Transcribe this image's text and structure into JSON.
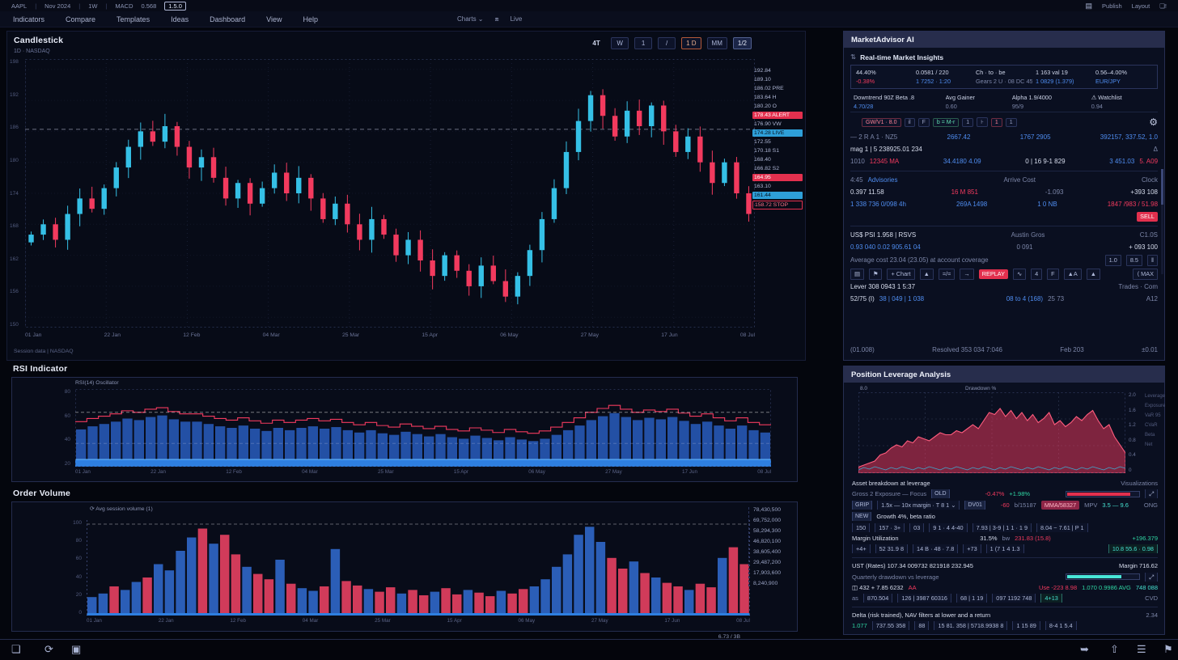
{
  "meta": {
    "accent_red": "#f23a5e",
    "accent_cyan": "#35c0e6",
    "accent_blue": "#4f8df0",
    "accent_teal": "#45e0cf",
    "chip_red": "#e3304e",
    "chip_blue": "#2e9fd8"
  },
  "topbar": {
    "left": [
      "AAPL",
      "Nov 2024",
      "1W",
      "MACD",
      "0.568"
    ],
    "version_chip": "1.5.0",
    "right": [
      "Publish",
      "Layout"
    ]
  },
  "menubar": {
    "items": [
      "Indicators",
      "Compare",
      "Templates",
      "Ideas",
      "Dashboard",
      "View",
      "Help"
    ],
    "center": [
      "Charts ⌄",
      "Live"
    ]
  },
  "price_panel": {
    "title": "Candlestick",
    "subtitle": "1D · NASDAQ",
    "toolbar": [
      {
        "t": "4T",
        "s": "plain"
      },
      {
        "t": "W",
        "s": ""
      },
      {
        "t": "1",
        "s": ""
      },
      {
        "t": "/",
        "s": ""
      },
      {
        "t": "1 D",
        "s": "orange"
      },
      {
        "t": "MM",
        "s": ""
      },
      {
        "t": "1/2",
        "s": "bright"
      }
    ],
    "y_labels": [
      "198",
      "192",
      "186",
      "180",
      "174",
      "168",
      "162",
      "156",
      "150"
    ],
    "x_labels": [
      "01 Jan",
      "22 Jan",
      "12 Feb",
      "04 Mar",
      "25 Mar",
      "15 Apr",
      "06 May",
      "27 May",
      "17 Jun",
      "08 Jul"
    ],
    "footer": "Session data  |  NASDAQ",
    "level_price": 186.4,
    "price_chips": [
      {
        "t": "192.84",
        "s": ""
      },
      {
        "t": "189.10",
        "s": ""
      },
      {
        "t": "186.02 PRE",
        "s": ""
      },
      {
        "t": "183.64 H",
        "s": ""
      },
      {
        "t": "180.20 O",
        "s": ""
      },
      {
        "t": "178.43 ALERT",
        "s": "red"
      },
      {
        "t": "176.90 VW",
        "s": ""
      },
      {
        "t": "174.28 LIVE",
        "s": "blue"
      },
      {
        "t": "172.55",
        "s": ""
      },
      {
        "t": "170.18 S1",
        "s": ""
      },
      {
        "t": "168.40",
        "s": ""
      },
      {
        "t": "166.82 S2",
        "s": ""
      },
      {
        "t": "164.95",
        "s": "red"
      },
      {
        "t": "163.10",
        "s": ""
      },
      {
        "t": "161.44",
        "s": "blue"
      },
      {
        "t": "158.72 STOP",
        "s": "outline-red"
      }
    ],
    "closes": [
      166,
      168,
      165,
      170,
      173,
      171,
      175,
      179,
      183,
      186,
      184,
      187,
      183,
      179,
      181,
      177,
      173,
      176,
      172,
      175,
      178,
      174,
      177,
      173,
      169,
      172,
      168,
      165,
      169,
      166,
      162,
      165,
      161,
      158,
      162,
      159,
      156,
      160,
      157,
      154,
      158,
      163,
      169,
      175,
      182,
      188,
      193,
      189,
      185,
      190,
      187,
      191,
      186,
      182,
      185,
      180,
      176,
      180,
      174,
      170
    ]
  },
  "rsi_panel": {
    "title": "RSI Indicator",
    "legend": "RSI(14)  Oscillator",
    "y_labels": [
      "80",
      "60",
      "40",
      "20"
    ],
    "x_labels": [
      "01 Jan",
      "22 Jan",
      "12 Feb",
      "04 Mar",
      "25 Mar",
      "15 Apr",
      "06 May",
      "27 May",
      "17 Jun",
      "08 Jul"
    ],
    "upper": 70,
    "lower": 30,
    "values": [
      48,
      52,
      55,
      58,
      62,
      60,
      64,
      66,
      61,
      58,
      58,
      55,
      52,
      50,
      53,
      49,
      46,
      50,
      47,
      50,
      52,
      49,
      51,
      47,
      44,
      47,
      43,
      41,
      45,
      42,
      39,
      42,
      38,
      36,
      40,
      37,
      34,
      38,
      35,
      33,
      36,
      41,
      47,
      53,
      60,
      65,
      69,
      64,
      60,
      63,
      61,
      64,
      59,
      55,
      58,
      53,
      49,
      53,
      47,
      44
    ]
  },
  "volume_panel": {
    "title": "Order Volume",
    "legend": "⟳  Avg session volume (1)",
    "y_labels": [
      "100",
      "80",
      "60",
      "40",
      "20",
      "0"
    ],
    "x_labels": [
      "01 Jan",
      "22 Jan",
      "12 Feb",
      "04 Mar",
      "25 Mar",
      "15 Apr",
      "06 May",
      "27 May",
      "17 Jun",
      "08 Jul"
    ],
    "right_labels": [
      "78,430,500",
      "69,752,000",
      "58,294,300",
      "46,820,100",
      "38,605,400",
      "29,487,200",
      "17,903,600",
      "8,240,900"
    ],
    "corner": "6.73 / 3B",
    "values": [
      18,
      22,
      30,
      26,
      35,
      40,
      55,
      48,
      70,
      85,
      95,
      78,
      88,
      66,
      52,
      44,
      38,
      60,
      33,
      28,
      25,
      30,
      72,
      36,
      31,
      27,
      24,
      29,
      22,
      26,
      20,
      24,
      28,
      21,
      26,
      23,
      19,
      25,
      22,
      27,
      30,
      38,
      52,
      66,
      88,
      97,
      80,
      62,
      50,
      58,
      45,
      40,
      34,
      30,
      26,
      33,
      29,
      62,
      74,
      55
    ]
  },
  "ai_panel": {
    "title": "MarketAdvisor AI",
    "subtitle": "Real-time Market Insights",
    "stats": [
      {
        "label": "44.40%",
        "value": "-0.38%",
        "tone": "red"
      },
      {
        "label": "0.0581 / 220",
        "value": "1 7252 · 1:20",
        "tone": "blue"
      },
      {
        "label": "Ch · to · be",
        "value": "Gears 2 U · 08 DC 459",
        "tone": "dim"
      },
      {
        "label": "1 163 val 19",
        "value": "1 0829 (1.379)",
        "tone": "blue"
      },
      {
        "label": "0.56–4.00%",
        "value": "EUR/JPY",
        "tone": "blue"
      }
    ],
    "stats2": [
      {
        "label": "Downtrend 90Z Beta .8",
        "value": "4.70/28",
        "tone": "blue"
      },
      {
        "label": "Avg Gainer",
        "value": "0.60",
        "tone": "dim"
      },
      {
        "label": "Alpha 1.9/4000",
        "value": "95/9",
        "tone": "dim"
      },
      {
        "label": "⚠ Watchlist",
        "value": "0.94",
        "tone": "dim"
      }
    ],
    "chips": [
      {
        "t": "GW/V1 · 8.0",
        "a": "red"
      },
      {
        "t": "il"
      },
      {
        "t": "F"
      },
      {
        "t": "b = M-r",
        "a": "green"
      },
      {
        "t": "1"
      },
      {
        "t": "⊦"
      },
      {
        "t": "1",
        "a": "red"
      },
      {
        "t": "1"
      }
    ],
    "gear": "⚙",
    "rows": [
      [
        {
          "t": "— 2 R A 1 · NZ5",
          "c": "dim"
        },
        {
          "sp": 1
        },
        {
          "t": "2667.42",
          "c": "blue"
        },
        {
          "sp": 1
        },
        {
          "t": "1767 2905",
          "c": "blue"
        },
        {
          "sp": 1
        },
        {
          "t": "392157, 337.52, 1.0",
          "c": "blue"
        }
      ],
      [
        {
          "t": "mag 1 | 5 238925.01 234",
          "c": "w"
        },
        {
          "sp": 1
        },
        {
          "t": "Δ",
          "c": "dim"
        }
      ],
      [
        {
          "t": "1010",
          "c": "dim"
        },
        {
          "t": "12345 MA",
          "c": "red"
        },
        {
          "sp": 1
        },
        {
          "t": "34.4180  4.09",
          "c": "blue"
        },
        {
          "sp": 1
        },
        {
          "t": "0 | 16 9-1 829",
          "c": "w"
        },
        {
          "sp": 1
        },
        {
          "t": "3 451.03",
          "c": "blue"
        },
        {
          "t": "5. A09",
          "c": "red"
        }
      ],
      "hr",
      [
        {
          "t": "4:45",
          "c": "dim"
        },
        {
          "t": "Advisories",
          "c": "blue"
        },
        {
          "sp": 1
        },
        {
          "t": "Arrive Cost",
          "c": "dim"
        },
        {
          "sp": 1
        },
        {
          "t": "Clock",
          "c": "dim"
        }
      ],
      [
        {
          "t": "0.397 11.58",
          "c": "w"
        },
        {
          "sp": 1
        },
        {
          "t": "16 M 851",
          "c": "red"
        },
        {
          "sp": 1
        },
        {
          "t": "-1.093",
          "c": "dim"
        },
        {
          "sp": 1
        },
        {
          "t": "+393 108",
          "c": "w"
        }
      ],
      [
        {
          "t": "1 338 736 0/098 4h",
          "c": "blue"
        },
        {
          "sp": 1
        },
        {
          "t": "269A 1498",
          "c": "blue"
        },
        {
          "sp": 1
        },
        {
          "t": "1 0 NB",
          "c": "blue"
        },
        {
          "sp": 1
        },
        {
          "t": "1847 /983 / 51.98",
          "c": "red"
        }
      ],
      [
        {
          "sp": 1
        },
        {
          "t": "SELL",
          "c": "chip-red"
        }
      ],
      "hr",
      [
        {
          "t": "US$ PSI 1.958 | RSVS",
          "c": "w"
        },
        {
          "sp": 1
        },
        {
          "t": "Austin Gros",
          "c": "dim"
        },
        {
          "sp": 1
        },
        {
          "t": "C1.0S",
          "c": "dim"
        }
      ],
      [
        {
          "t": "0.93 040 0.02 905.61 04",
          "c": "blue"
        },
        {
          "sp": 1
        },
        {
          "t": "0 091",
          "c": "dim"
        },
        {
          "sp": 1
        },
        {
          "t": "+ 093 100",
          "c": "w"
        }
      ],
      [
        {
          "t": "Average cost 23.04 (23.05) at account coverage",
          "c": "dim"
        },
        {
          "sp": 1
        },
        {
          "t": "1.0",
          "c": "box"
        },
        {
          "t": "8.5",
          "c": "box"
        },
        {
          "t": "‖",
          "c": "box"
        }
      ],
      [
        {
          "t": "▤",
          "c": "box"
        },
        {
          "t": "⚑",
          "c": "box"
        },
        {
          "t": "+ Chart",
          "c": "box"
        },
        {
          "t": "▲",
          "c": "box"
        },
        {
          "t": "=/=",
          "c": "box"
        },
        {
          "t": "→",
          "c": "box"
        },
        {
          "t": "REPLAY",
          "c": "chip-red"
        },
        {
          "t": "∿",
          "c": "box"
        },
        {
          "t": "4",
          "c": "box"
        },
        {
          "t": "F",
          "c": "box"
        },
        {
          "t": "▲A",
          "c": "box"
        },
        {
          "t": "▲",
          "c": "box"
        },
        {
          "sp": 1
        },
        {
          "t": "⟨ MAX",
          "c": "box"
        }
      ],
      [
        {
          "t": "Lever 308 0943 1 5:37",
          "c": "w"
        },
        {
          "sp": 1
        },
        {
          "t": "Trades · Com",
          "c": "dim"
        }
      ],
      [
        {
          "t": "52/75 (I)",
          "c": "w"
        },
        {
          "t": "38 | 049 | 1 038",
          "c": "blue"
        },
        {
          "sp": 1
        },
        {
          "t": "08 to 4 (168)",
          "c": "blue"
        },
        {
          "t": "25 73",
          "c": "dim"
        },
        {
          "sp": 1
        },
        {
          "t": "A12",
          "c": "dim"
        }
      ]
    ],
    "footer_rows": [
      [
        {
          "t": "(01.008)",
          "c": "dim"
        },
        {
          "sp": 1
        },
        {
          "t": "Resolved 353 034 7:046",
          "c": "dim"
        },
        {
          "sp": 1
        },
        {
          "t": "Feb 203",
          "c": "dim"
        },
        {
          "sp": 1
        },
        {
          "t": "±0.01",
          "c": "dim"
        }
      ]
    ]
  },
  "leverage_panel": {
    "title": "Position Leverage Analysis",
    "chart": {
      "top_left": "8.0",
      "top_center": "Drawdown %",
      "right_ticks": [
        "2.0",
        "1.6",
        "1.2",
        "0.8",
        "0.4",
        "0"
      ],
      "side_legend": [
        "Leverage",
        "Exposure",
        "VaR 95",
        "CVaR",
        "Beta",
        "Net"
      ],
      "values": [
        0.15,
        0.2,
        0.25,
        0.3,
        0.45,
        0.5,
        0.62,
        0.7,
        0.65,
        0.8,
        0.75,
        0.9,
        0.85,
        0.8,
        0.9,
        1.0,
        0.95,
        0.95,
        1.05,
        1.0,
        1.1,
        1.2,
        1.1,
        1.3,
        1.5,
        1.45,
        1.6,
        1.4,
        1.55,
        1.35,
        1.5,
        1.3,
        1.45,
        1.25,
        1.35,
        1.5,
        1.2,
        1.3,
        1.15,
        1.25,
        1.4,
        1.3,
        1.45,
        1.55,
        1.3,
        1.1,
        1.2,
        0.9,
        0.7,
        0.5
      ]
    },
    "rows": [
      [
        {
          "t": "Asset breakdown at leverage",
          "c": "w"
        },
        {
          "sp": 1
        },
        {
          "t": "Visualizations",
          "c": "dim"
        }
      ],
      [
        {
          "t": "Gross 2 Exposure — Focus",
          "c": "dim"
        },
        {
          "t": "OLD",
          "c": "badge"
        },
        {
          "sp": 1
        },
        {
          "t": "-0.47%",
          "c": "red"
        },
        {
          "t": "+1.98%",
          "c": "green"
        },
        {
          "sp": 1
        },
        {
          "bar": {
            "w": 86,
            "tone": ""
          }
        },
        {
          "t": "⤢",
          "c": "box"
        }
      ],
      [
        {
          "t": "GRIP",
          "c": "badge"
        },
        {
          "t": "1.5x — 10x margin · T 8 1 ⌄",
          "c": "box"
        },
        {
          "t": "DV01",
          "c": "badge"
        },
        {
          "sp": 1
        },
        {
          "t": "-60",
          "c": "red"
        },
        {
          "t": "b/15187",
          "c": "dim"
        },
        {
          "t": "MMA/58327",
          "c": "chip-pink"
        },
        {
          "t": "MPV",
          "c": "dim"
        },
        {
          "t": "3.5 — 9.6",
          "c": "teal"
        },
        {
          "sp": 1
        },
        {
          "t": "ONG",
          "c": "dim"
        }
      ],
      [
        {
          "t": "NEW",
          "c": "badge"
        },
        {
          "t": "Growth 4%, beta ratio",
          "c": "w"
        }
      ],
      [
        {
          "t": "150",
          "c": "box"
        },
        {
          "t": "157 · 3+",
          "c": "box"
        },
        {
          "t": "03",
          "c": "box"
        },
        {
          "t": "9 1 · 4 4-40",
          "c": "box"
        },
        {
          "t": "7.93 | 3-9 | 1 1 · 1 9",
          "c": "box"
        },
        {
          "t": "8.04 ~ 7.61 | P 1",
          "c": "box"
        }
      ],
      [
        {
          "t": "Margin Utilization",
          "c": "w"
        },
        {
          "sp": 1
        },
        {
          "t": "31.5%",
          "c": "w"
        },
        {
          "t": "bw",
          "c": "dim"
        },
        {
          "t": "231.83 (15.8)",
          "c": "red"
        },
        {
          "sp": 1
        },
        {
          "t": "+196.379",
          "c": "green"
        }
      ],
      [
        {
          "t": "+4+",
          "c": "box"
        },
        {
          "t": "52 31.9 8",
          "c": "box"
        },
        {
          "t": "14 B · 48 · 7.8",
          "c": "box"
        },
        {
          "t": "+73",
          "c": "box"
        },
        {
          "t": "1 (7 1 4 1.3",
          "c": "box"
        },
        {
          "sp": 1
        },
        {
          "t": "10.8 55.6 · 0.98",
          "c": "box-teal"
        }
      ],
      "hr",
      [
        {
          "t": "UST (Rates) 107.34 009732 821918 232.945",
          "c": "w"
        },
        {
          "sp": 1
        },
        {
          "t": "Margin 716.62",
          "c": "w"
        }
      ],
      [
        {
          "t": "Quarterly drawdown vs leverage",
          "c": "dim"
        },
        {
          "sp": 1
        },
        {
          "bar": {
            "w": 74,
            "tone": "teal"
          }
        },
        {
          "t": "⤢",
          "c": "box"
        }
      ],
      [
        {
          "t": "◫ 432 + 7.85 6232",
          "c": "w"
        },
        {
          "t": "AA",
          "c": "red"
        },
        {
          "sp": 1
        },
        {
          "t": "Use -223 8.98",
          "c": "red"
        },
        {
          "t": "1.070 0.9986 AVG",
          "c": "green"
        },
        {
          "t": "748 088",
          "c": "teal"
        }
      ],
      [
        {
          "t": "as",
          "c": "dim"
        },
        {
          "t": "870.504",
          "c": "box"
        },
        {
          "t": "126 | 3987 60316",
          "c": "box"
        },
        {
          "t": "68 | 1 19",
          "c": "box"
        },
        {
          "t": "097 1192 748",
          "c": "box"
        },
        {
          "t": "4+13",
          "c": "box-teal"
        },
        {
          "sp": 1
        },
        {
          "t": "CVD",
          "c": "dim"
        }
      ],
      "hr",
      [
        {
          "t": "Delta (risk trained), NAV filters at lower and a return",
          "c": "w"
        },
        {
          "sp": 1
        },
        {
          "t": "2.34",
          "c": "dim"
        }
      ],
      [
        {
          "t": "1.077",
          "c": "green"
        },
        {
          "t": "737.55 358",
          "c": "box"
        },
        {
          "t": "88",
          "c": "box"
        },
        {
          "t": "15 81. 358 | 5718.9938 8",
          "c": "box"
        },
        {
          "t": "1 15 89",
          "c": "box"
        },
        {
          "t": "8-4 1 5.4",
          "c": "box"
        }
      ]
    ]
  },
  "statusbar": {
    "left_icons": [
      "❏",
      "⟳",
      "▣"
    ],
    "right_icons": [
      "➥",
      "⇧",
      "☰",
      "⚑"
    ]
  }
}
